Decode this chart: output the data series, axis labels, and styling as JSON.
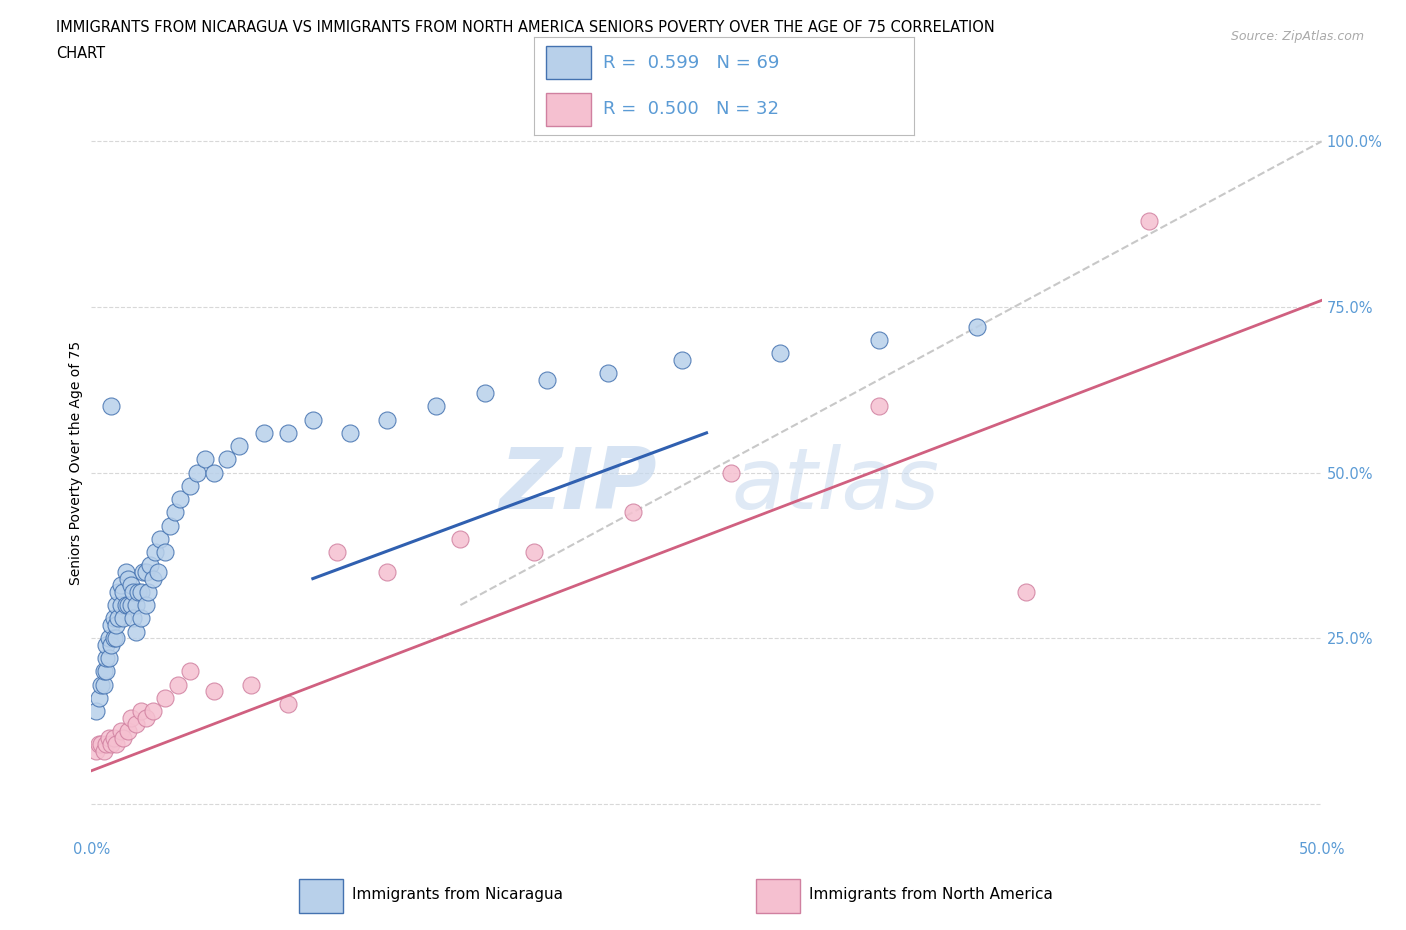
{
  "title_line1": "IMMIGRANTS FROM NICARAGUA VS IMMIGRANTS FROM NORTH AMERICA SENIORS POVERTY OVER THE AGE OF 75 CORRELATION",
  "title_line2": "CHART",
  "source": "Source: ZipAtlas.com",
  "ylabel": "Seniors Poverty Over the Age of 75",
  "xmin": 0.0,
  "xmax": 0.5,
  "ymin": -0.05,
  "ymax": 1.08,
  "watermark_zip": "ZIP",
  "watermark_atlas": "atlas",
  "legend_label1": "Immigrants from Nicaragua",
  "legend_label2": "Immigrants from North America",
  "blue_fill": "#b8d0ea",
  "pink_fill": "#f5c0d0",
  "blue_line_color": "#3060b0",
  "pink_line_color": "#d06080",
  "blue_edge": "#4472b0",
  "pink_edge": "#d080a0",
  "ref_line_color": "#c8c8c8",
  "tick_color": "#5b9bd5",
  "grid_color": "#d8d8d8",
  "blue_scatter_x": [
    0.002,
    0.003,
    0.004,
    0.005,
    0.005,
    0.006,
    0.006,
    0.006,
    0.007,
    0.007,
    0.008,
    0.008,
    0.009,
    0.009,
    0.01,
    0.01,
    0.01,
    0.011,
    0.011,
    0.012,
    0.012,
    0.013,
    0.013,
    0.014,
    0.014,
    0.015,
    0.015,
    0.016,
    0.016,
    0.017,
    0.017,
    0.018,
    0.018,
    0.019,
    0.02,
    0.02,
    0.021,
    0.022,
    0.022,
    0.023,
    0.024,
    0.025,
    0.026,
    0.027,
    0.028,
    0.03,
    0.032,
    0.034,
    0.036,
    0.04,
    0.043,
    0.046,
    0.05,
    0.055,
    0.06,
    0.07,
    0.08,
    0.09,
    0.105,
    0.12,
    0.14,
    0.16,
    0.185,
    0.21,
    0.24,
    0.28,
    0.32,
    0.36,
    0.008
  ],
  "blue_scatter_y": [
    0.14,
    0.16,
    0.18,
    0.18,
    0.2,
    0.2,
    0.22,
    0.24,
    0.22,
    0.25,
    0.24,
    0.27,
    0.25,
    0.28,
    0.25,
    0.27,
    0.3,
    0.28,
    0.32,
    0.3,
    0.33,
    0.28,
    0.32,
    0.3,
    0.35,
    0.3,
    0.34,
    0.3,
    0.33,
    0.28,
    0.32,
    0.26,
    0.3,
    0.32,
    0.28,
    0.32,
    0.35,
    0.3,
    0.35,
    0.32,
    0.36,
    0.34,
    0.38,
    0.35,
    0.4,
    0.38,
    0.42,
    0.44,
    0.46,
    0.48,
    0.5,
    0.52,
    0.5,
    0.52,
    0.54,
    0.56,
    0.56,
    0.58,
    0.56,
    0.58,
    0.6,
    0.62,
    0.64,
    0.65,
    0.67,
    0.68,
    0.7,
    0.72,
    0.6
  ],
  "pink_scatter_x": [
    0.002,
    0.003,
    0.004,
    0.005,
    0.006,
    0.007,
    0.008,
    0.009,
    0.01,
    0.012,
    0.013,
    0.015,
    0.016,
    0.018,
    0.02,
    0.022,
    0.025,
    0.03,
    0.035,
    0.04,
    0.05,
    0.065,
    0.08,
    0.1,
    0.12,
    0.15,
    0.18,
    0.22,
    0.26,
    0.32,
    0.38,
    0.43
  ],
  "pink_scatter_y": [
    0.08,
    0.09,
    0.09,
    0.08,
    0.09,
    0.1,
    0.09,
    0.1,
    0.09,
    0.11,
    0.1,
    0.11,
    0.13,
    0.12,
    0.14,
    0.13,
    0.14,
    0.16,
    0.18,
    0.2,
    0.17,
    0.18,
    0.15,
    0.38,
    0.35,
    0.4,
    0.38,
    0.44,
    0.5,
    0.6,
    0.32,
    0.88
  ],
  "blue_line_x": [
    0.09,
    0.25
  ],
  "blue_line_y": [
    0.34,
    0.56
  ],
  "pink_line_x": [
    0.0,
    0.5
  ],
  "pink_line_y": [
    0.05,
    0.76
  ],
  "ref_line_x": [
    0.15,
    0.5
  ],
  "ref_line_y": [
    0.3,
    1.0
  ],
  "yticks": [
    0.0,
    0.25,
    0.5,
    0.75,
    1.0
  ],
  "ytick_labels": [
    "",
    "25.0%",
    "50.0%",
    "75.0%",
    "100.0%"
  ],
  "xticks": [
    0.0,
    0.1,
    0.2,
    0.3,
    0.4,
    0.5
  ],
  "xtick_labels": [
    "0.0%",
    "",
    "",
    "",
    "",
    "50.0%"
  ]
}
